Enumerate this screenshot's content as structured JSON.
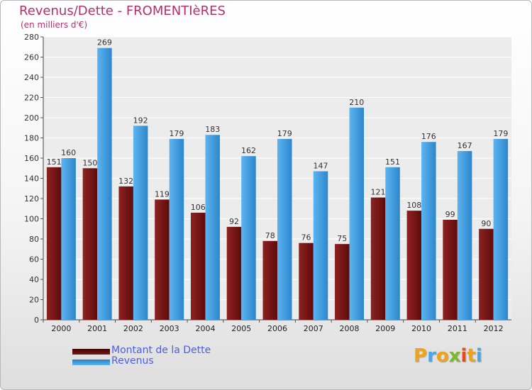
{
  "chart_data": {
    "type": "bar",
    "title": "Revenus/Dette - FROMENTIèRES",
    "subtitle": "(en milliers d'€)",
    "categories": [
      "2000",
      "2001",
      "2002",
      "2003",
      "2004",
      "2005",
      "2006",
      "2007",
      "2008",
      "2009",
      "2010",
      "2011",
      "2012"
    ],
    "series": [
      {
        "name": "Montant de la Dette",
        "color": "#7b1818",
        "values": [
          151,
          150,
          132,
          119,
          106,
          92,
          78,
          76,
          75,
          121,
          108,
          99,
          90
        ]
      },
      {
        "name": "Revenus",
        "color": "#4fa6e6",
        "values": [
          160,
          269,
          192,
          179,
          183,
          162,
          179,
          147,
          210,
          151,
          176,
          167,
          179
        ]
      }
    ],
    "ylim": [
      0,
      280
    ],
    "yticks": [
      0,
      20,
      40,
      60,
      80,
      100,
      120,
      140,
      160,
      180,
      200,
      220,
      240,
      260,
      280
    ],
    "grid": true,
    "legend": "bottom-left"
  },
  "logo": {
    "text": "Proxiti"
  }
}
